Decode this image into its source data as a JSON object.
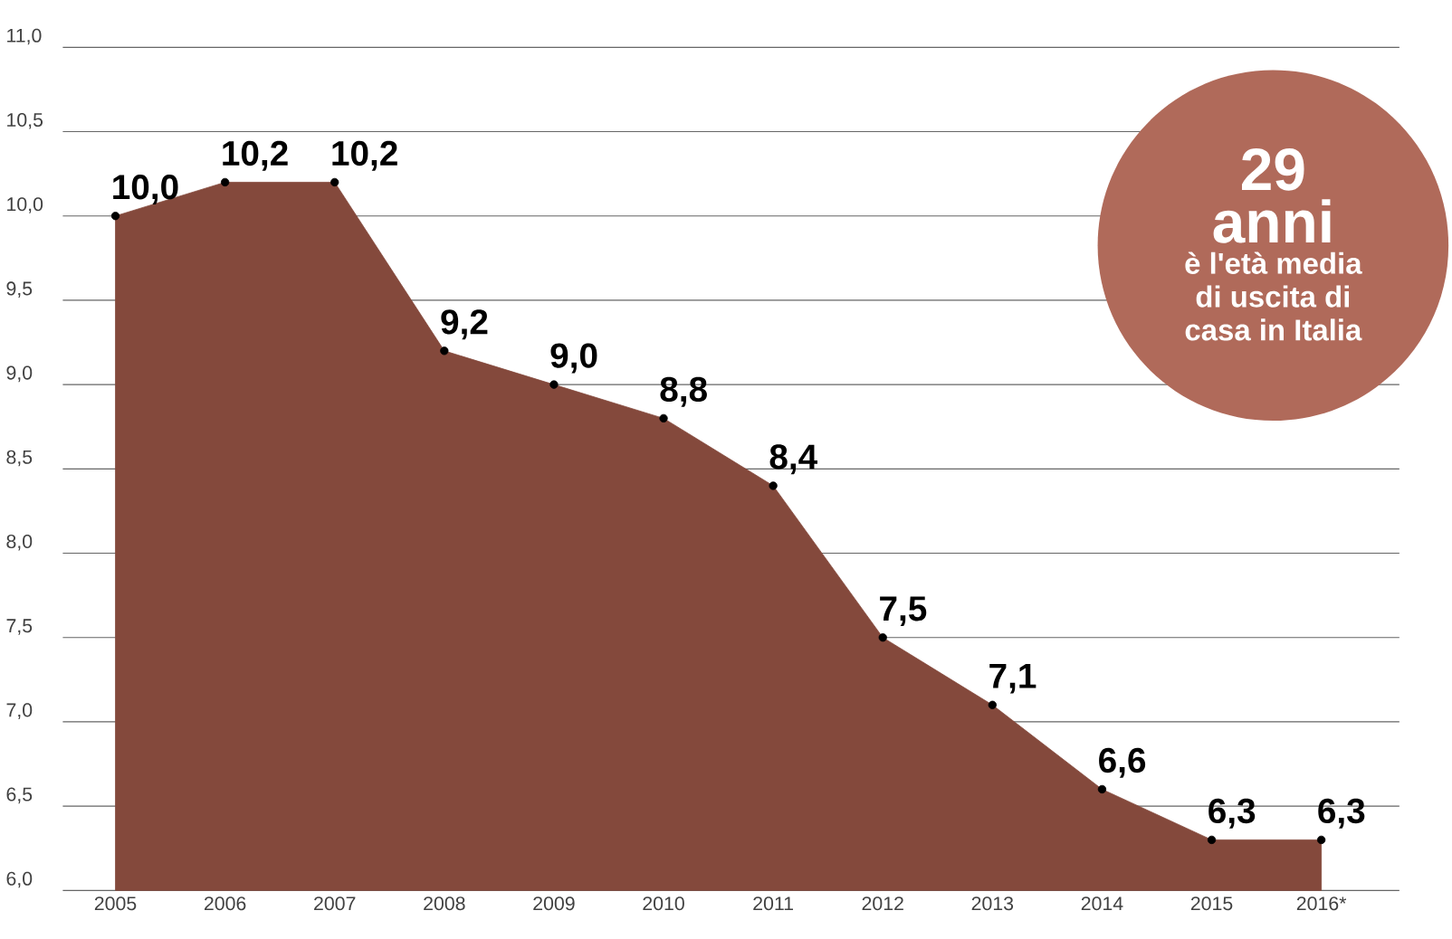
{
  "chart_data": {
    "type": "area",
    "categories": [
      "2005",
      "2006",
      "2007",
      "2008",
      "2009",
      "2010",
      "2011",
      "2012",
      "2013",
      "2014",
      "2015",
      "2016*"
    ],
    "values": [
      10.0,
      10.2,
      10.2,
      9.2,
      9.0,
      8.8,
      8.4,
      7.5,
      7.1,
      6.6,
      6.3,
      6.3
    ],
    "value_labels": [
      "10,0",
      "10,2",
      "10,2",
      "9,2",
      "9,0",
      "8,8",
      "8,4",
      "7,5",
      "7,1",
      "6,6",
      "6,3",
      "6,3"
    ],
    "color": "#84493c",
    "ylim": [
      6.0,
      11.0
    ],
    "yticks": [
      {
        "value": 6.0,
        "label": "6,0"
      },
      {
        "value": 6.5,
        "label": "6,5"
      },
      {
        "value": 7.0,
        "label": "7,0"
      },
      {
        "value": 7.5,
        "label": "7,5"
      },
      {
        "value": 8.0,
        "label": "8,0"
      },
      {
        "value": 8.5,
        "label": "8,5"
      },
      {
        "value": 9.0,
        "label": "9,0"
      },
      {
        "value": 9.5,
        "label": "9,5"
      },
      {
        "value": 10.0,
        "label": "10,0"
      },
      {
        "value": 10.5,
        "label": "10,5"
      },
      {
        "value": 11.0,
        "label": "11,0"
      }
    ],
    "grid": "y",
    "marker": "circle",
    "annotations": [
      "29",
      "anni",
      "è l'età media di uscita di casa in Italia"
    ]
  }
}
